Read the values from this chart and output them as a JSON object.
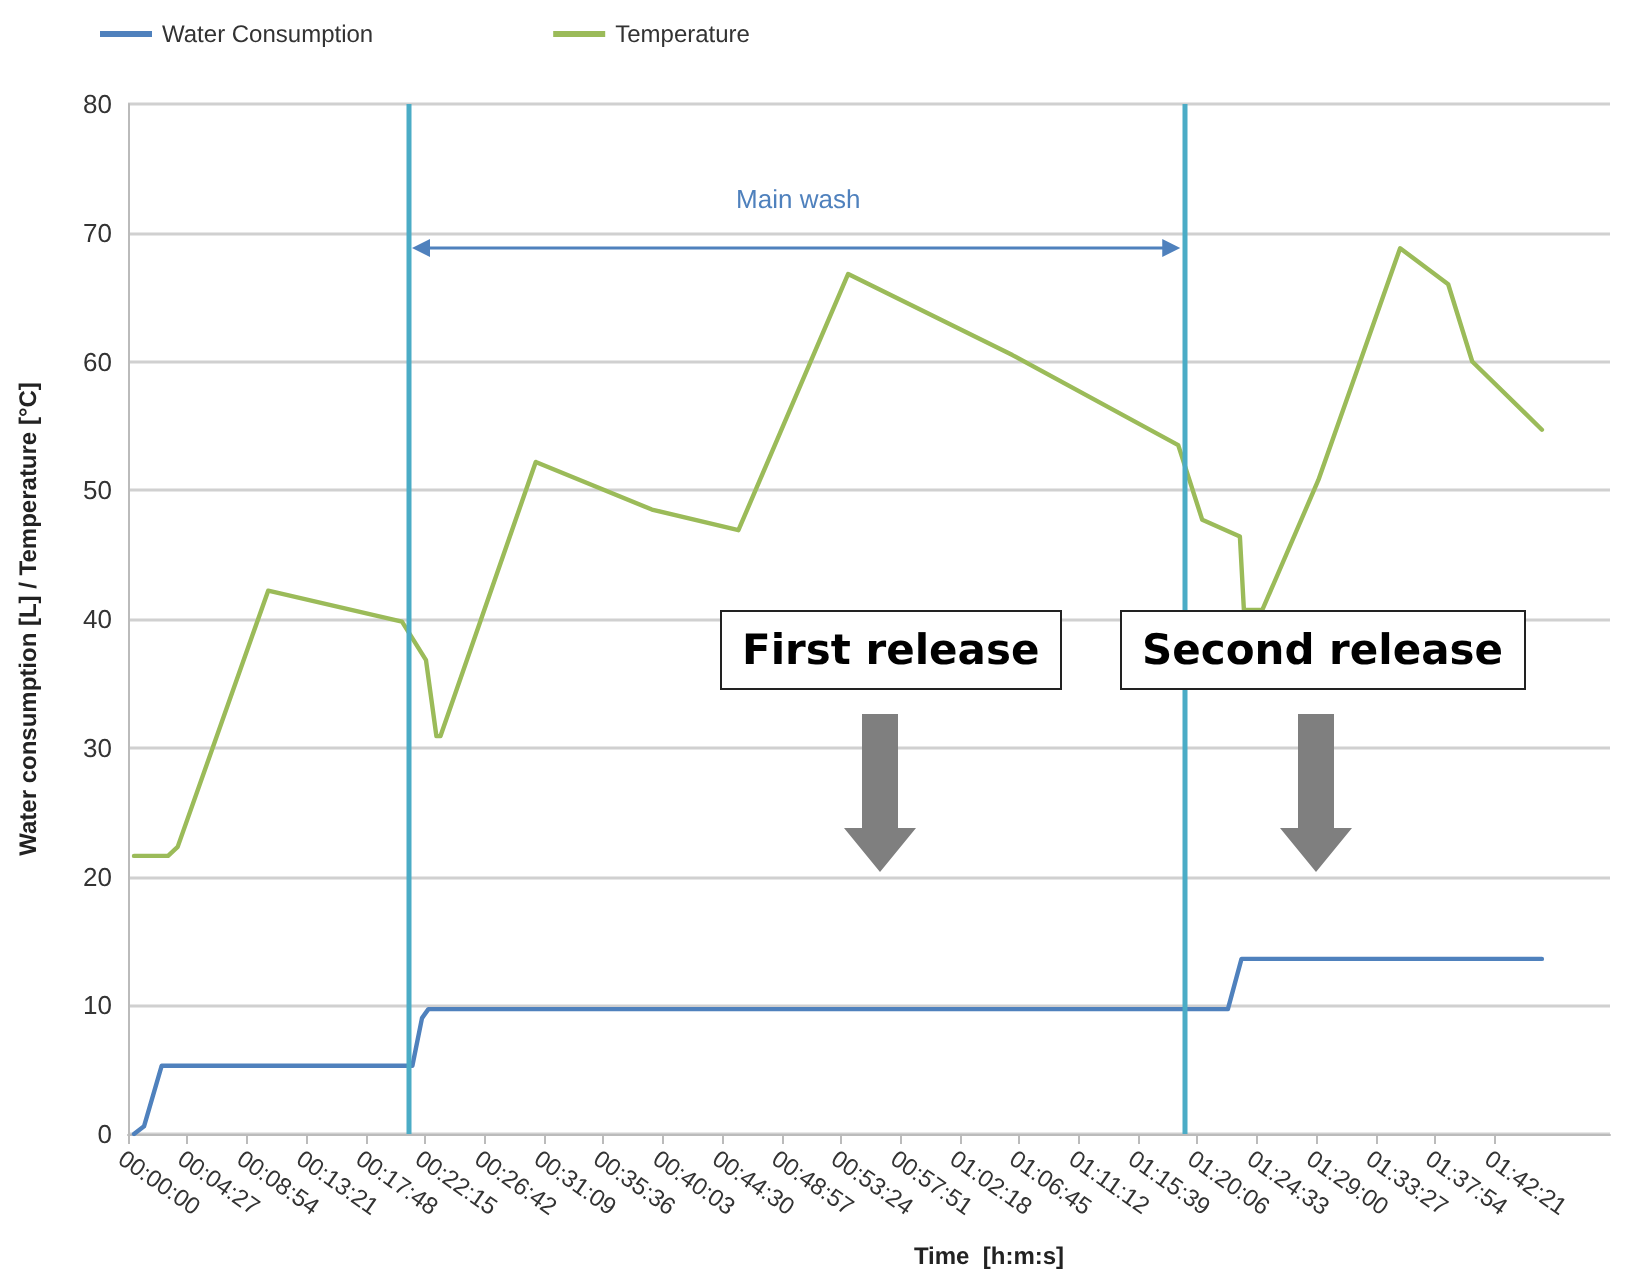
{
  "chart_data": {
    "type": "line",
    "xlabel": "Time  [h:m:s]",
    "ylabel": "Water consumption [L] / Temperature [°C]",
    "x": [
      0.0075,
      0.02,
      0.042,
      0.355,
      0.367,
      0.375,
      1.373,
      1.39,
      1.765
    ],
    "series": [
      {
        "name": "Water Consumption",
        "color": "#4f81bd",
        "values": [
          0,
          0.6,
          5.3,
          5.3,
          9,
          9.7,
          9.7,
          13.6,
          13.6
        ]
      },
      {
        "name": "Temperature",
        "color": "#9bbb59",
        "x": [
          0.0075,
          0.05,
          0.062,
          0.175,
          0.342,
          0.372,
          0.385,
          0.39,
          0.509,
          0.654,
          0.762,
          0.899,
          1.104,
          1.311,
          1.341,
          1.388,
          1.393,
          1.416,
          1.486,
          1.588,
          1.648,
          1.678,
          1.765
        ],
        "values": [
          21.6,
          21.6,
          22.3,
          42.2,
          39.8,
          36.8,
          30.9,
          30.9,
          52.2,
          48.5,
          46.9,
          66.8,
          60.5,
          53.5,
          47.7,
          46.4,
          40.7,
          40.7,
          50.8,
          68.8,
          66,
          60,
          54.7
        ]
      }
    ],
    "xlim": [
      0,
      1.85
    ],
    "xticks": [
      {
        "value": 0,
        "label": "00:00:00"
      },
      {
        "value": 0.0742,
        "label": "00:04:27"
      },
      {
        "value": 0.1483,
        "label": "00:08:54"
      },
      {
        "value": 0.2225,
        "label": "00:13:21"
      },
      {
        "value": 0.2967,
        "label": "00:17:48"
      },
      {
        "value": 0.3708,
        "label": "00:22:15"
      },
      {
        "value": 0.445,
        "label": "00:26:42"
      },
      {
        "value": 0.5192,
        "label": "00:31:09"
      },
      {
        "value": 0.5933,
        "label": "00:35:36"
      },
      {
        "value": 0.6675,
        "label": "00:40:03"
      },
      {
        "value": 0.7417,
        "label": "00:44:30"
      },
      {
        "value": 0.8158,
        "label": "00:48:57"
      },
      {
        "value": 0.89,
        "label": "00:53:24"
      },
      {
        "value": 0.9642,
        "label": "00:57:51"
      },
      {
        "value": 1.0383,
        "label": "01:02:18"
      },
      {
        "value": 1.1125,
        "label": "01:06:45"
      },
      {
        "value": 1.1867,
        "label": "01:11:12"
      },
      {
        "value": 1.2608,
        "label": "01:15:39"
      },
      {
        "value": 1.335,
        "label": "01:20:06"
      },
      {
        "value": 1.4092,
        "label": "01:24:33"
      },
      {
        "value": 1.4833,
        "label": "01:29:00"
      },
      {
        "value": 1.5575,
        "label": "01:33:27"
      },
      {
        "value": 1.6317,
        "label": "01:37:54"
      },
      {
        "value": 1.7058,
        "label": "01:42:21"
      }
    ],
    "ylim": [
      0,
      80
    ],
    "yticks": [
      0,
      10,
      20,
      30,
      40,
      50,
      60,
      70,
      80
    ],
    "ref_lines": [
      {
        "axis": "x",
        "value": 0.347,
        "color": "#4bacc6"
      },
      {
        "axis": "x",
        "value": 1.321,
        "color": "#4bacc6"
      }
    ],
    "annotations": [
      "Main wash",
      "First release",
      "Second release"
    ],
    "grid": "y",
    "legend": "top left",
    "marker": "none",
    "line_style": "solid"
  }
}
